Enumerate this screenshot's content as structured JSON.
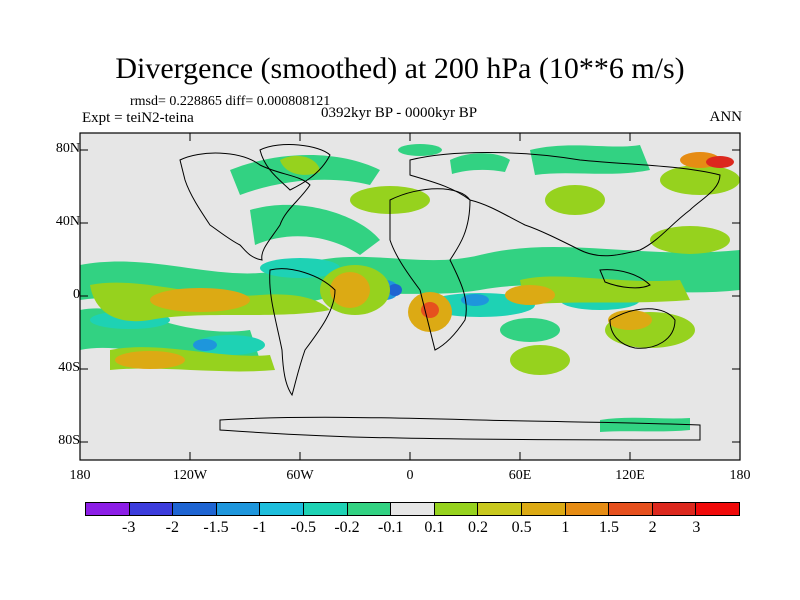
{
  "title": "Divergence (smoothed) at 200 hPa (10**6 m/s)",
  "stats": "rmsd= 0.228865 diff= 0.000808121",
  "experiment": "Expt = teiN2-teina",
  "period": "0392kyr BP - 0000kyr BP",
  "season": "ANN",
  "lat_ticks": [
    "80N",
    "40N",
    "0",
    "40S",
    "80S"
  ],
  "lon_ticks": [
    "180",
    "120W",
    "60W",
    "0",
    "60E",
    "120E",
    "180"
  ],
  "colorbar": {
    "colors": [
      "#8c1ee6",
      "#3c3cdc",
      "#1e64d2",
      "#1e96dc",
      "#1ebedc",
      "#1ed2b4",
      "#32d282",
      "#e6e6e6",
      "#96d21e",
      "#c8c81e",
      "#dcaa14",
      "#e68c14",
      "#e6501e",
      "#dc281e",
      "#f00a0a"
    ],
    "labels": [
      "-3",
      "-2",
      "-1.5",
      "-1",
      "-0.5",
      "-0.2",
      "-0.1",
      "0.1",
      "0.2",
      "0.5",
      "1",
      "1.5",
      "2",
      "3"
    ]
  }
}
